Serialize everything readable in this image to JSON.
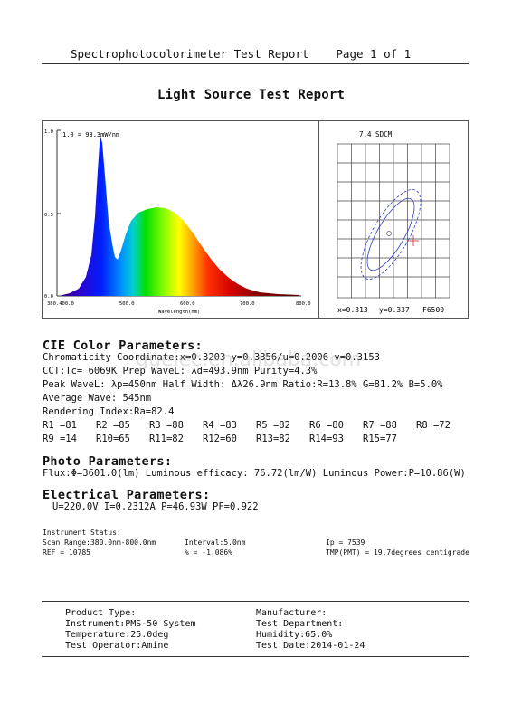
{
  "header": {
    "title": "Spectrophotocolorimeter Test Report",
    "page": "Page 1 of 1"
  },
  "report_title": "Light Source Test Report",
  "spectrum": {
    "peak_label": "1.0 = 93.3mW/nm",
    "y_ticks": [
      "1.0",
      "0.5",
      "0.0"
    ],
    "x_ticks": [
      "380.400.0",
      "500.0",
      "600.0",
      "700.0",
      "800.0"
    ],
    "x_label": "Wavelength(nm)"
  },
  "chromaticity": {
    "title": "7.4 SDCM",
    "x_value": "x=0.313",
    "y_value": "y=0.337",
    "reference": "F6500"
  },
  "cie": {
    "heading": "CIE Color Parameters:",
    "line1": "Chromaticity Coordinate:x=0.3203  y=0.3356/u=0.2006  v=0.3153",
    "line2": "CCT:Tc=  6069K  Prep WaveL: λd=493.9nm  Purity=4.3%",
    "line3": "Peak WaveL:  λp=450nm  Half Width:   Δλ26.9nm Ratio:R=13.8% G=81.2% B=5.0%",
    "line4": "Average Wave: 545nm",
    "line5": "Rendering Index:Ra=82.4",
    "r_row1": [
      "R1 =81",
      "R2 =85",
      "R3 =88",
      "R4 =83",
      "R5 =82",
      "R6 =80",
      "R7 =88",
      "R8 =72"
    ],
    "r_row2": [
      "R9 =14",
      "R10=65",
      "R11=82",
      "R12=60",
      "R13=82",
      "R14=93",
      "R15=77"
    ]
  },
  "photo": {
    "heading": "Photo Parameters:",
    "line1": "Flux:Φ=3601.0(lm) Luminous efficacy: 76.72(lm/W) Luminous Power:P=10.86(W)"
  },
  "electrical": {
    "heading": "Electrical Parameters:",
    "line1": "U=220.0V  I=0.2312A  P=46.93W  PF=0.922"
  },
  "instrument": {
    "heading": "Instrument Status:",
    "scan_range": "Scan Range:380.0nm-800.0nm",
    "interval": "Interval:5.0nm",
    "ip": "Ip = 7539",
    "ref": "REF = 10785",
    "percent": "% = -1.086%",
    "tmp": "TMP(PMT) = 19.7degrees centigrade"
  },
  "footer": {
    "product_type": "Product Type:",
    "instrument": "Instrument:PMS-50 System",
    "temperature": "Temperature:25.0deg",
    "operator": "Test Operator:Amine",
    "manufacturer": "Manufacturer:",
    "department": "Test Department:",
    "humidity": "Humidity:65.0%",
    "date": "Test Date:2014-01-24"
  },
  "watermark": "gueiec.en.alibaba.com"
}
